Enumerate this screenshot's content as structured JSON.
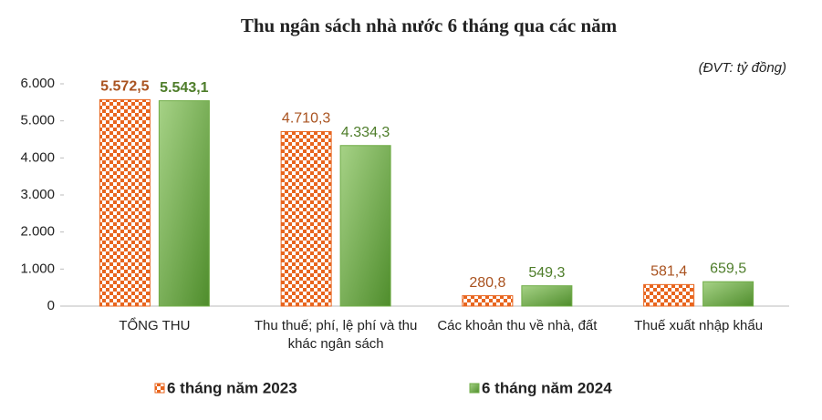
{
  "chart_data": {
    "type": "bar",
    "title": "Thu ngân sách nhà nước 6 tháng qua các năm",
    "unit_note": "(ĐVT: tỷ đồng)",
    "categories": [
      "TỔNG THU",
      "Thu thuế; phí, lệ phí và thu khác ngân sách",
      "Các khoản thu về nhà, đất",
      "Thuế xuất nhập khẩu"
    ],
    "series": [
      {
        "name": "6 tháng năm 2023",
        "color": "#e8651e",
        "label_color": "#a9521f",
        "values": [
          5572.5,
          4710.3,
          280.8,
          581.4
        ],
        "value_labels": [
          "5.572,5",
          "4.710,3",
          "280,8",
          "581,4"
        ]
      },
      {
        "name": "6 tháng năm 2024",
        "color": "#70ad47",
        "label_color": "#4e7d2a",
        "values": [
          5543.1,
          4334.3,
          549.3,
          659.5
        ],
        "value_labels": [
          "5.543,1",
          "4.334,3",
          "549,3",
          "659,5"
        ]
      }
    ],
    "ylim": [
      0,
      6000
    ],
    "yticks": [
      0,
      {
        "value": 1000,
        "label": "1.000"
      },
      {
        "value": 2000,
        "label": "2.000"
      },
      {
        "value": 3000,
        "label": "3.000"
      },
      {
        "value": 4000,
        "label": "4.000"
      },
      {
        "value": 5000,
        "label": "5.000"
      },
      {
        "value": 6000,
        "label": "6.000"
      }
    ],
    "grid": false
  }
}
